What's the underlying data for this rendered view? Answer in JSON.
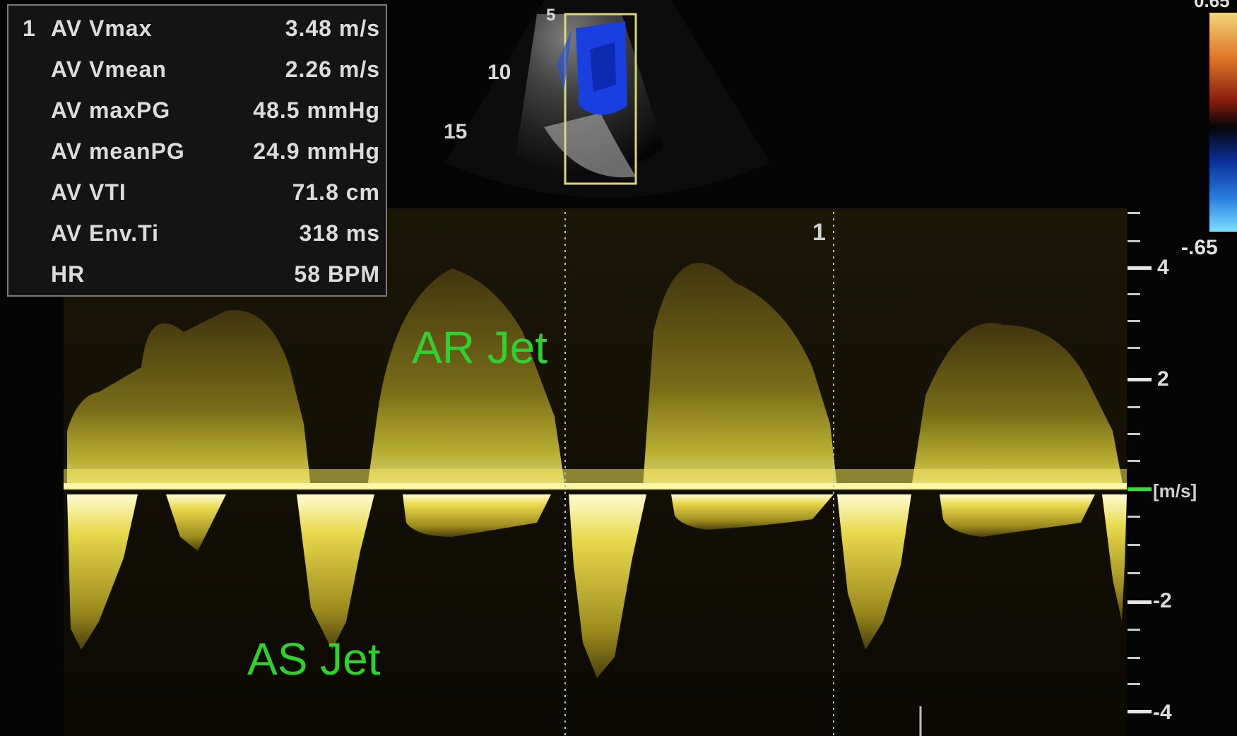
{
  "measurements": [
    {
      "index": "1",
      "label": "AV Vmax",
      "value": "3.48 m/s"
    },
    {
      "index": "",
      "label": "AV Vmean",
      "value": "2.26 m/s"
    },
    {
      "index": "",
      "label": "AV maxPG",
      "value": "48.5 mmHg"
    },
    {
      "index": "",
      "label": "AV meanPG",
      "value": "24.9 mmHg"
    },
    {
      "index": "",
      "label": "AV VTI",
      "value": "71.8 cm"
    },
    {
      "index": "",
      "label": "AV Env.Ti",
      "value": "318 ms"
    },
    {
      "index": "",
      "label": "HR",
      "value": "58 BPM"
    }
  ],
  "sector_depths": [
    "5",
    "10",
    "15"
  ],
  "colorbar": {
    "top": "0.65",
    "bottom": "-.65"
  },
  "scale": {
    "labels": [
      "4",
      "2",
      "[m/s]",
      "-2",
      "-4"
    ]
  },
  "marker": "1",
  "annotations": {
    "ar": "AR Jet",
    "as": "AS Jet"
  }
}
